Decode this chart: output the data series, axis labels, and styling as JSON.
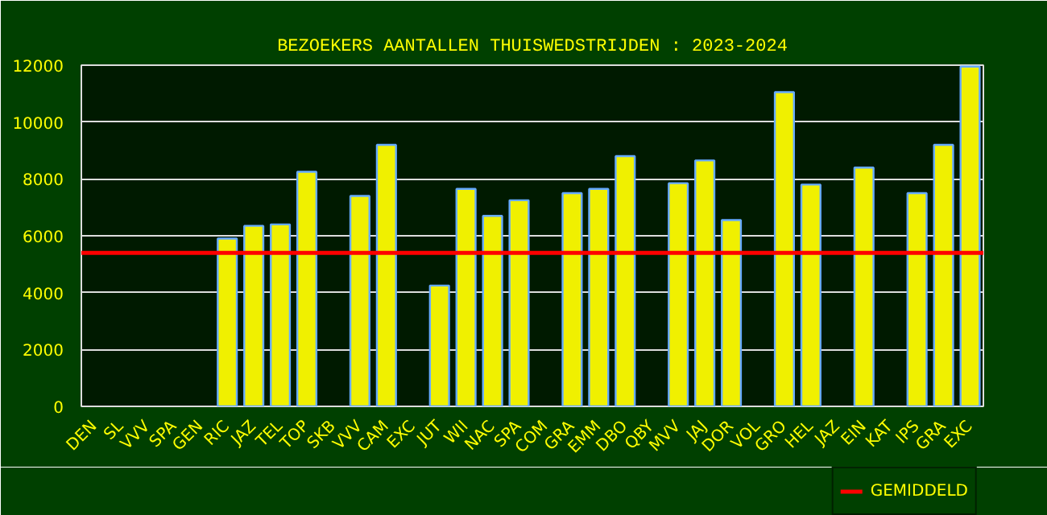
{
  "chart_data": {
    "type": "bar",
    "title": "BEZOEKERS AANTALLEN THUISWEDSTRIJDEN : 2023-2024",
    "categories": [
      "DEN",
      "SL",
      "VVV",
      "SPA",
      "GEN",
      "RIC",
      "JAZ",
      "TEL",
      "TOP",
      "SKB",
      "VVV",
      "CAM",
      "EXC",
      "JUT",
      "WII",
      "NAC",
      "SPA",
      "COM",
      "GRA",
      "EMM",
      "DBO",
      "QBY",
      "MVV",
      "JAJ",
      "DOR",
      "VOL",
      "GRO",
      "HEL",
      "JAZ",
      "EIN",
      "KAT",
      "IPS",
      "GRA",
      "EXC"
    ],
    "values": [
      null,
      null,
      null,
      null,
      null,
      5900,
      6350,
      6400,
      8250,
      null,
      7400,
      9200,
      null,
      4250,
      7650,
      6700,
      7250,
      null,
      7500,
      7650,
      8800,
      null,
      7850,
      8650,
      6550,
      null,
      11050,
      7800,
      null,
      8400,
      null,
      7500,
      9200,
      11950
    ],
    "color": "#f0f000",
    "ylim": [
      0,
      12000
    ],
    "yticks": [
      0,
      2000,
      4000,
      6000,
      8000,
      10000,
      12000
    ],
    "grid": "y",
    "ref_lines": [
      {
        "axis": "y",
        "value": 5400,
        "label": "GEMIDDELD",
        "color": "#ff0000"
      }
    ],
    "legend": "bottom right"
  }
}
